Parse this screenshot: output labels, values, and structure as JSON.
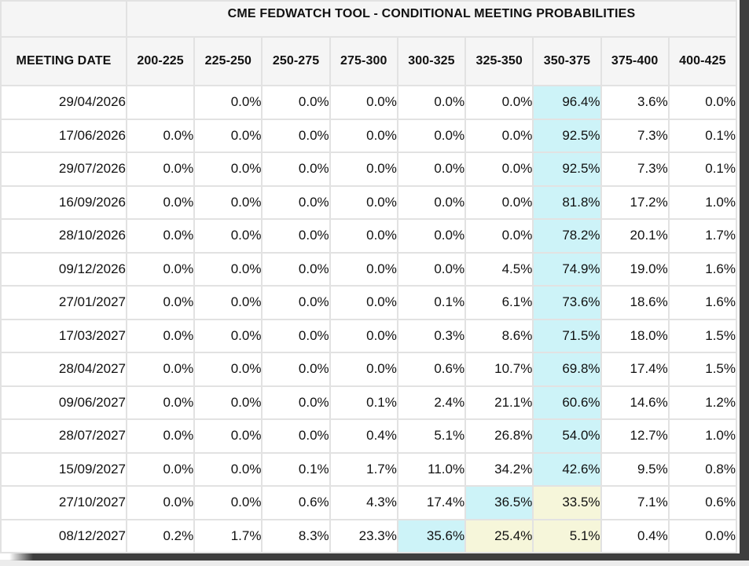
{
  "window": {
    "frame_color": "#3e3e3e",
    "outside_bg": "#ececec"
  },
  "table": {
    "title": "CME FEDWATCH TOOL - CONDITIONAL MEETING PROBABILITIES",
    "colors": {
      "header_bg": "#f5f5f5",
      "highlight_cyan": "#cdf3f8",
      "highlight_yellow": "#f6f6da",
      "grid_border": "#e2e2e2"
    },
    "columns": [
      "MEETING DATE",
      "200-225",
      "225-250",
      "250-275",
      "275-300",
      "300-325",
      "325-350",
      "350-375",
      "375-400",
      "400-425"
    ],
    "rows": [
      {
        "date": "29/04/2026",
        "values": [
          "",
          "0.0%",
          "0.0%",
          "0.0%",
          "0.0%",
          "0.0%",
          "96.4%",
          "3.6%",
          "0.0%"
        ],
        "highlights": [
          null,
          null,
          null,
          null,
          null,
          null,
          "cyan",
          null,
          null
        ]
      },
      {
        "date": "17/06/2026",
        "values": [
          "0.0%",
          "0.0%",
          "0.0%",
          "0.0%",
          "0.0%",
          "0.0%",
          "92.5%",
          "7.3%",
          "0.1%"
        ],
        "highlights": [
          null,
          null,
          null,
          null,
          null,
          null,
          "cyan",
          null,
          null
        ]
      },
      {
        "date": "29/07/2026",
        "values": [
          "0.0%",
          "0.0%",
          "0.0%",
          "0.0%",
          "0.0%",
          "0.0%",
          "92.5%",
          "7.3%",
          "0.1%"
        ],
        "highlights": [
          null,
          null,
          null,
          null,
          null,
          null,
          "cyan",
          null,
          null
        ]
      },
      {
        "date": "16/09/2026",
        "values": [
          "0.0%",
          "0.0%",
          "0.0%",
          "0.0%",
          "0.0%",
          "0.0%",
          "81.8%",
          "17.2%",
          "1.0%"
        ],
        "highlights": [
          null,
          null,
          null,
          null,
          null,
          null,
          "cyan",
          null,
          null
        ]
      },
      {
        "date": "28/10/2026",
        "values": [
          "0.0%",
          "0.0%",
          "0.0%",
          "0.0%",
          "0.0%",
          "0.0%",
          "78.2%",
          "20.1%",
          "1.7%"
        ],
        "highlights": [
          null,
          null,
          null,
          null,
          null,
          null,
          "cyan",
          null,
          null
        ]
      },
      {
        "date": "09/12/2026",
        "values": [
          "0.0%",
          "0.0%",
          "0.0%",
          "0.0%",
          "0.0%",
          "4.5%",
          "74.9%",
          "19.0%",
          "1.6%"
        ],
        "highlights": [
          null,
          null,
          null,
          null,
          null,
          null,
          "cyan",
          null,
          null
        ]
      },
      {
        "date": "27/01/2027",
        "values": [
          "0.0%",
          "0.0%",
          "0.0%",
          "0.0%",
          "0.1%",
          "6.1%",
          "73.6%",
          "18.6%",
          "1.6%"
        ],
        "highlights": [
          null,
          null,
          null,
          null,
          null,
          null,
          "cyan",
          null,
          null
        ]
      },
      {
        "date": "17/03/2027",
        "values": [
          "0.0%",
          "0.0%",
          "0.0%",
          "0.0%",
          "0.3%",
          "8.6%",
          "71.5%",
          "18.0%",
          "1.5%"
        ],
        "highlights": [
          null,
          null,
          null,
          null,
          null,
          null,
          "cyan",
          null,
          null
        ]
      },
      {
        "date": "28/04/2027",
        "values": [
          "0.0%",
          "0.0%",
          "0.0%",
          "0.0%",
          "0.6%",
          "10.7%",
          "69.8%",
          "17.4%",
          "1.5%"
        ],
        "highlights": [
          null,
          null,
          null,
          null,
          null,
          null,
          "cyan",
          null,
          null
        ]
      },
      {
        "date": "09/06/2027",
        "values": [
          "0.0%",
          "0.0%",
          "0.0%",
          "0.1%",
          "2.4%",
          "21.1%",
          "60.6%",
          "14.6%",
          "1.2%"
        ],
        "highlights": [
          null,
          null,
          null,
          null,
          null,
          null,
          "cyan",
          null,
          null
        ]
      },
      {
        "date": "28/07/2027",
        "values": [
          "0.0%",
          "0.0%",
          "0.0%",
          "0.4%",
          "5.1%",
          "26.8%",
          "54.0%",
          "12.7%",
          "1.0%"
        ],
        "highlights": [
          null,
          null,
          null,
          null,
          null,
          null,
          "cyan",
          null,
          null
        ]
      },
      {
        "date": "15/09/2027",
        "values": [
          "0.0%",
          "0.0%",
          "0.1%",
          "1.7%",
          "11.0%",
          "34.2%",
          "42.6%",
          "9.5%",
          "0.8%"
        ],
        "highlights": [
          null,
          null,
          null,
          null,
          null,
          null,
          "cyan",
          null,
          null
        ]
      },
      {
        "date": "27/10/2027",
        "values": [
          "0.0%",
          "0.0%",
          "0.6%",
          "4.3%",
          "17.4%",
          "36.5%",
          "33.5%",
          "7.1%",
          "0.6%"
        ],
        "highlights": [
          null,
          null,
          null,
          null,
          null,
          "cyan",
          "yellow",
          null,
          null
        ]
      },
      {
        "date": "08/12/2027",
        "values": [
          "0.2%",
          "1.7%",
          "8.3%",
          "23.3%",
          "35.6%",
          "25.4%",
          "5.1%",
          "0.4%",
          "0.0%"
        ],
        "highlights": [
          null,
          null,
          null,
          null,
          "cyan",
          "yellow",
          "yellow",
          null,
          null
        ]
      }
    ]
  }
}
